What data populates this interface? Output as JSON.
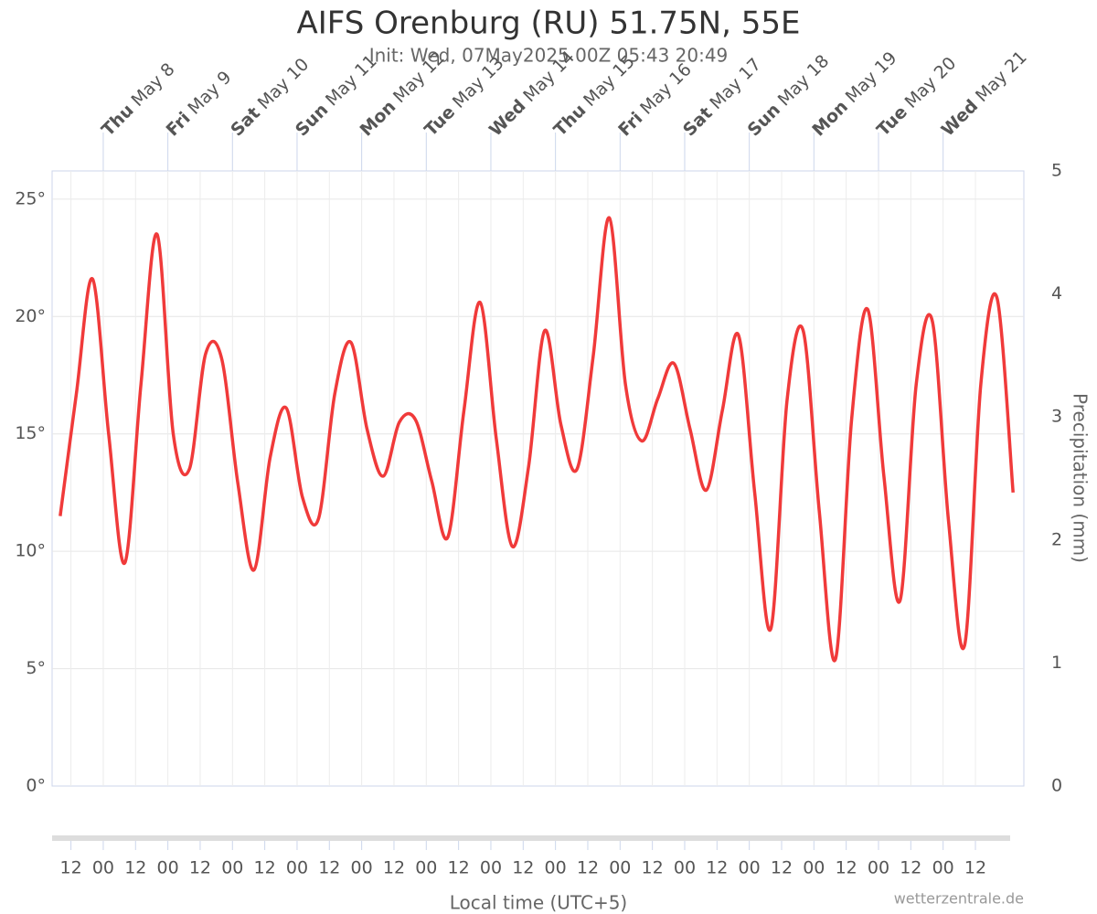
{
  "chart_data": {
    "type": "line",
    "title": "AIFS Orenburg (RU) 51.75N, 55E",
    "subtitle": "Init: Wed, 07May2025 00Z 05:43 20:49",
    "x_label": "Local time (UTC+5)",
    "y2_label": "Precipitation (mm)",
    "credit": "wetterzentrale.de",
    "xlim": [
      -19,
      342
    ],
    "xticks": [
      {
        "value": -12,
        "label": "12"
      },
      {
        "value": 0,
        "label": "00"
      },
      {
        "value": 12,
        "label": "12"
      },
      {
        "value": 24,
        "label": "00"
      },
      {
        "value": 36,
        "label": "12"
      },
      {
        "value": 48,
        "label": "00"
      },
      {
        "value": 60,
        "label": "12"
      },
      {
        "value": 72,
        "label": "00"
      },
      {
        "value": 84,
        "label": "12"
      },
      {
        "value": 96,
        "label": "00"
      },
      {
        "value": 108,
        "label": "12"
      },
      {
        "value": 120,
        "label": "00"
      },
      {
        "value": 132,
        "label": "12"
      },
      {
        "value": 144,
        "label": "00"
      },
      {
        "value": 156,
        "label": "12"
      },
      {
        "value": 168,
        "label": "00"
      },
      {
        "value": 180,
        "label": "12"
      },
      {
        "value": 192,
        "label": "00"
      },
      {
        "value": 204,
        "label": "12"
      },
      {
        "value": 216,
        "label": "00"
      },
      {
        "value": 228,
        "label": "12"
      },
      {
        "value": 240,
        "label": "00"
      },
      {
        "value": 252,
        "label": "12"
      },
      {
        "value": 264,
        "label": "00"
      },
      {
        "value": 276,
        "label": "12"
      },
      {
        "value": 288,
        "label": "00"
      },
      {
        "value": 300,
        "label": "12"
      },
      {
        "value": 312,
        "label": "00"
      },
      {
        "value": 324,
        "label": "12"
      }
    ],
    "day_ticks": [
      {
        "value": 0,
        "weekday": "Thu",
        "date": "May 8"
      },
      {
        "value": 24,
        "weekday": "Fri",
        "date": "May 9"
      },
      {
        "value": 48,
        "weekday": "Sat",
        "date": "May 10"
      },
      {
        "value": 72,
        "weekday": "Sun",
        "date": "May 11"
      },
      {
        "value": 96,
        "weekday": "Mon",
        "date": "May 12"
      },
      {
        "value": 120,
        "weekday": "Tue",
        "date": "May 13"
      },
      {
        "value": 144,
        "weekday": "Wed",
        "date": "May 14"
      },
      {
        "value": 168,
        "weekday": "Thu",
        "date": "May 15"
      },
      {
        "value": 192,
        "weekday": "Fri",
        "date": "May 16"
      },
      {
        "value": 216,
        "weekday": "Sat",
        "date": "May 17"
      },
      {
        "value": 240,
        "weekday": "Sun",
        "date": "May 18"
      },
      {
        "value": 264,
        "weekday": "Mon",
        "date": "May 19"
      },
      {
        "value": 288,
        "weekday": "Tue",
        "date": "May 20"
      },
      {
        "value": 312,
        "weekday": "Wed",
        "date": "May 21"
      }
    ],
    "ylim": [
      0,
      26.2
    ],
    "yticks": [
      {
        "value": 0,
        "label": "0°"
      },
      {
        "value": 5,
        "label": "5°"
      },
      {
        "value": 10,
        "label": "10°"
      },
      {
        "value": 15,
        "label": "15°"
      },
      {
        "value": 20,
        "label": "20°"
      },
      {
        "value": 25,
        "label": "25°"
      }
    ],
    "y2lim": [
      0,
      5
    ],
    "y2ticks": [
      0,
      1,
      2,
      3,
      4,
      5
    ],
    "grid": true,
    "series": [
      {
        "color": "#f03a3a",
        "x": [
          -16,
          -10,
          -4,
          2,
          8,
          14,
          20,
          26,
          32,
          38,
          44,
          50,
          56,
          62,
          68,
          74,
          80,
          86,
          92,
          98,
          104,
          110,
          116,
          122,
          128,
          134,
          140,
          146,
          152,
          158,
          164,
          170,
          176,
          182,
          188,
          194,
          200,
          206,
          212,
          218,
          224,
          230,
          236,
          242,
          248,
          254,
          260,
          266,
          272,
          278,
          284,
          290,
          296,
          302,
          308,
          314,
          320,
          326,
          332,
          338
        ],
        "values": [
          11.5,
          16.7,
          21.6,
          15,
          9.5,
          17.1,
          23.5,
          15,
          13.5,
          18.4,
          18.2,
          12.9,
          9.2,
          14,
          16.1,
          12.3,
          11.4,
          16.7,
          18.9,
          15.2,
          13.2,
          15.5,
          15.6,
          13,
          10.6,
          16,
          20.6,
          14.8,
          10.2,
          13.6,
          19.4,
          15.4,
          13.5,
          18.3,
          24.2,
          17.1,
          14.7,
          16.5,
          18,
          15.2,
          12.6,
          16,
          19.2,
          12.5,
          6.7,
          16.4,
          19.4,
          11.7,
          5.4,
          15.6,
          20.3,
          13.2,
          7.9,
          17.1,
          19.8,
          11.3,
          6,
          17.1,
          20.8,
          12.5
        ]
      }
    ]
  }
}
